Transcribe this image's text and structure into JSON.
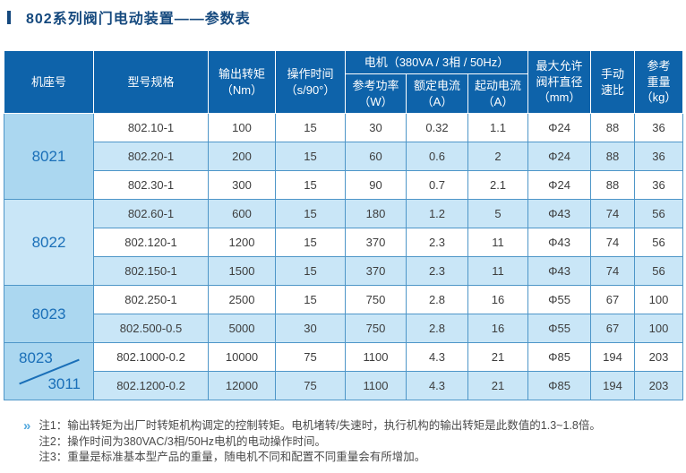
{
  "page": {
    "title": "802系列阀门电动装置——参数表"
  },
  "colors": {
    "header_bg": "#0e63aa",
    "row_stripe": "#c9e6f7",
    "frame_column_bg": "#abd7f0",
    "table_border": "#4e96c8",
    "frame_text": "#1a6fb8",
    "title_text": "#15497e",
    "note_icon": "#54a9de"
  },
  "table": {
    "headers": {
      "frame": "机座号",
      "model": "型号规格",
      "torque_l1": "输出转矩",
      "torque_l2": "（Nm）",
      "time_l1": "操作时间",
      "time_l2": "（s/90°）",
      "motor_group": "电机（380VA / 3相 / 50Hz）",
      "power_l1": "参考功率",
      "power_l2": "（W）",
      "rated_l1": "额定电流",
      "rated_l2": "（A）",
      "start_l1": "起动电流",
      "start_l2": "（A）",
      "stem_l1": "最大允许",
      "stem_l2": "阀杆直径",
      "stem_l3": "（mm）",
      "manual_l1": "手动",
      "manual_l2": "速比",
      "weight_l1": "参考",
      "weight_l2": "重量",
      "weight_l3": "（kg）"
    },
    "groups": [
      {
        "frame": "8021",
        "rows": [
          {
            "model": "802.10-1",
            "values": [
              "100",
              "15",
              "30",
              "0.32",
              "1.1",
              "Φ24",
              "88",
              "36"
            ]
          },
          {
            "model": "802.20-1",
            "values": [
              "200",
              "15",
              "60",
              "0.6",
              "2",
              "Φ24",
              "88",
              "36"
            ]
          },
          {
            "model": "802.30-1",
            "values": [
              "300",
              "15",
              "90",
              "0.7",
              "2.1",
              "Φ24",
              "88",
              "36"
            ]
          }
        ]
      },
      {
        "frame": "8022",
        "rows": [
          {
            "model": "802.60-1",
            "values": [
              "600",
              "15",
              "180",
              "1.2",
              "5",
              "Φ43",
              "74",
              "56"
            ]
          },
          {
            "model": "802.120-1",
            "values": [
              "1200",
              "15",
              "370",
              "2.3",
              "11",
              "Φ43",
              "74",
              "56"
            ]
          },
          {
            "model": "802.150-1",
            "values": [
              "1500",
              "15",
              "370",
              "2.3",
              "11",
              "Φ43",
              "74",
              "56"
            ]
          }
        ]
      },
      {
        "frame": "8023",
        "rows": [
          {
            "model": "802.250-1",
            "values": [
              "2500",
              "15",
              "750",
              "2.8",
              "16",
              "Φ55",
              "67",
              "100"
            ]
          },
          {
            "model": "802.500-0.5",
            "values": [
              "5000",
              "30",
              "750",
              "2.8",
              "16",
              "Φ55",
              "67",
              "100"
            ]
          }
        ]
      },
      {
        "frame": "8023",
        "frame_secondary": "3011",
        "rows": [
          {
            "model": "802.1000-0.2",
            "values": [
              "10000",
              "75",
              "1100",
              "4.3",
              "21",
              "Φ85",
              "194",
              "203"
            ]
          },
          {
            "model": "802.1200-0.2",
            "values": [
              "12000",
              "75",
              "1100",
              "4.3",
              "21",
              "Φ85",
              "194",
              "203"
            ]
          }
        ]
      }
    ]
  },
  "notes": {
    "icon": "»",
    "items": [
      {
        "label": "注1：",
        "text": "输出转矩为出厂时转矩机构调定的控制转矩。电机堵转/失速时，执行机构的输出转矩是此数值的1.3~1.8倍。"
      },
      {
        "label": "注2：",
        "text": "操作时间为380VAC/3相/50Hz电机的电动操作时间。"
      },
      {
        "label": "注3：",
        "text": "重量是标准基本型产品的重量，随电机不同和配置不同重量会有所增加。"
      }
    ]
  }
}
